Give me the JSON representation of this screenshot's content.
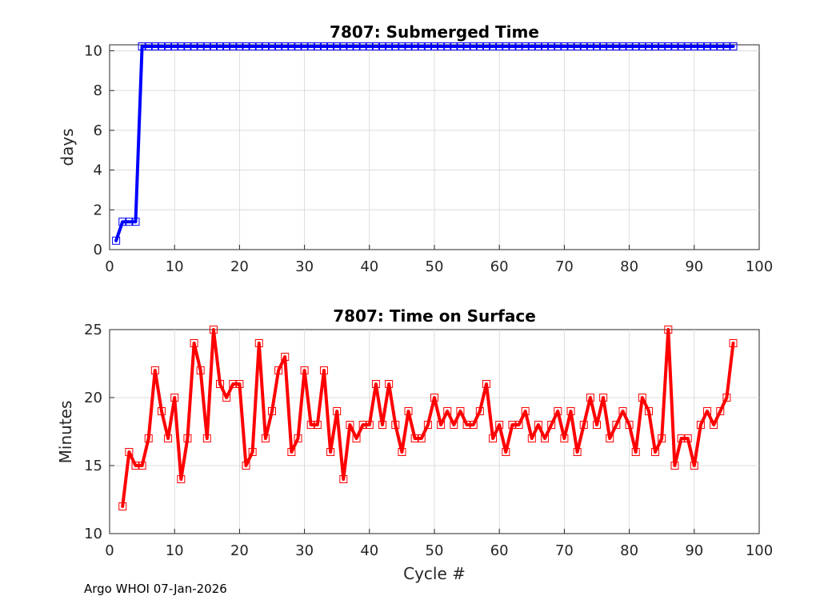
{
  "footer": "Argo WHOI 07-Jan-2026",
  "chart_data": [
    {
      "type": "line",
      "title": "7807: Submerged Time",
      "xlabel": "",
      "ylabel": "days",
      "xlim": [
        0,
        100
      ],
      "ylim": [
        0,
        10.3
      ],
      "xticks": [
        0,
        10,
        20,
        30,
        40,
        50,
        60,
        70,
        80,
        90,
        100
      ],
      "yticks": [
        0,
        2,
        4,
        6,
        8,
        10
      ],
      "grid": true,
      "color": "#0000ff",
      "marker": "square",
      "series": [
        {
          "name": "Submerged Time",
          "x": [
            1,
            2,
            3,
            4,
            5,
            6,
            7,
            8,
            9,
            10,
            11,
            12,
            13,
            14,
            15,
            16,
            17,
            18,
            19,
            20,
            21,
            22,
            23,
            24,
            25,
            26,
            27,
            28,
            29,
            30,
            31,
            32,
            33,
            34,
            35,
            36,
            37,
            38,
            39,
            40,
            41,
            42,
            43,
            44,
            45,
            46,
            47,
            48,
            49,
            50,
            51,
            52,
            53,
            54,
            55,
            56,
            57,
            58,
            59,
            60,
            61,
            62,
            63,
            64,
            65,
            66,
            67,
            68,
            69,
            70,
            71,
            72,
            73,
            74,
            75,
            76,
            77,
            78,
            79,
            80,
            81,
            82,
            83,
            84,
            85,
            86,
            87,
            88,
            89,
            90,
            91,
            92,
            93,
            94,
            95,
            96
          ],
          "values": [
            0.45,
            1.4,
            1.4,
            1.4,
            10.22,
            10.22,
            10.22,
            10.22,
            10.22,
            10.22,
            10.22,
            10.22,
            10.22,
            10.22,
            10.22,
            10.22,
            10.22,
            10.22,
            10.22,
            10.22,
            10.22,
            10.22,
            10.22,
            10.22,
            10.22,
            10.22,
            10.22,
            10.22,
            10.22,
            10.22,
            10.22,
            10.22,
            10.22,
            10.22,
            10.22,
            10.22,
            10.22,
            10.22,
            10.22,
            10.22,
            10.22,
            10.22,
            10.22,
            10.22,
            10.22,
            10.22,
            10.22,
            10.22,
            10.22,
            10.22,
            10.22,
            10.22,
            10.22,
            10.22,
            10.22,
            10.22,
            10.22,
            10.22,
            10.22,
            10.22,
            10.22,
            10.22,
            10.22,
            10.22,
            10.22,
            10.22,
            10.22,
            10.22,
            10.22,
            10.22,
            10.22,
            10.22,
            10.22,
            10.22,
            10.22,
            10.22,
            10.22,
            10.22,
            10.22,
            10.22,
            10.22,
            10.22,
            10.22,
            10.22,
            10.22,
            10.22,
            10.22,
            10.22,
            10.22,
            10.22,
            10.22,
            10.22,
            10.22,
            10.22,
            10.22,
            10.22
          ]
        }
      ]
    },
    {
      "type": "line",
      "title": "7807: Time on Surface",
      "xlabel": "Cycle #",
      "ylabel": "Minutes",
      "xlim": [
        0,
        100
      ],
      "ylim": [
        10,
        25
      ],
      "xticks": [
        0,
        10,
        20,
        30,
        40,
        50,
        60,
        70,
        80,
        90,
        100
      ],
      "yticks": [
        10,
        15,
        20,
        25
      ],
      "grid": true,
      "color": "#ff0000",
      "marker": "square",
      "series": [
        {
          "name": "Time on Surface",
          "x": [
            2,
            3,
            4,
            5,
            6,
            7,
            8,
            9,
            10,
            11,
            12,
            13,
            14,
            15,
            16,
            17,
            18,
            19,
            20,
            21,
            22,
            23,
            24,
            25,
            26,
            27,
            28,
            29,
            30,
            31,
            32,
            33,
            34,
            35,
            36,
            37,
            38,
            39,
            40,
            41,
            42,
            43,
            44,
            45,
            46,
            47,
            48,
            49,
            50,
            51,
            52,
            53,
            54,
            55,
            56,
            57,
            58,
            59,
            60,
            61,
            62,
            63,
            64,
            65,
            66,
            67,
            68,
            69,
            70,
            71,
            72,
            73,
            74,
            75,
            76,
            77,
            78,
            79,
            80,
            81,
            82,
            83,
            84,
            85,
            86,
            87,
            88,
            89,
            90,
            91,
            92,
            93,
            94,
            95,
            96
          ],
          "values": [
            12,
            16,
            15,
            15,
            17,
            22,
            19,
            17,
            20,
            14,
            17,
            24,
            22,
            17,
            25,
            21,
            20,
            21,
            21,
            15,
            16,
            24,
            17,
            19,
            22,
            23,
            16,
            17,
            22,
            18,
            18,
            22,
            16,
            19,
            14,
            18,
            17,
            18,
            18,
            21,
            18,
            21,
            18,
            16,
            19,
            17,
            17,
            18,
            20,
            18,
            19,
            18,
            19,
            18,
            18,
            19,
            21,
            17,
            18,
            16,
            18,
            18,
            19,
            17,
            18,
            17,
            18,
            19,
            17,
            19,
            16,
            18,
            20,
            18,
            20,
            17,
            18,
            19,
            18,
            16,
            20,
            19,
            16,
            17,
            25,
            15,
            17,
            17,
            15,
            18,
            19,
            18,
            19,
            20,
            24
          ]
        }
      ]
    }
  ]
}
